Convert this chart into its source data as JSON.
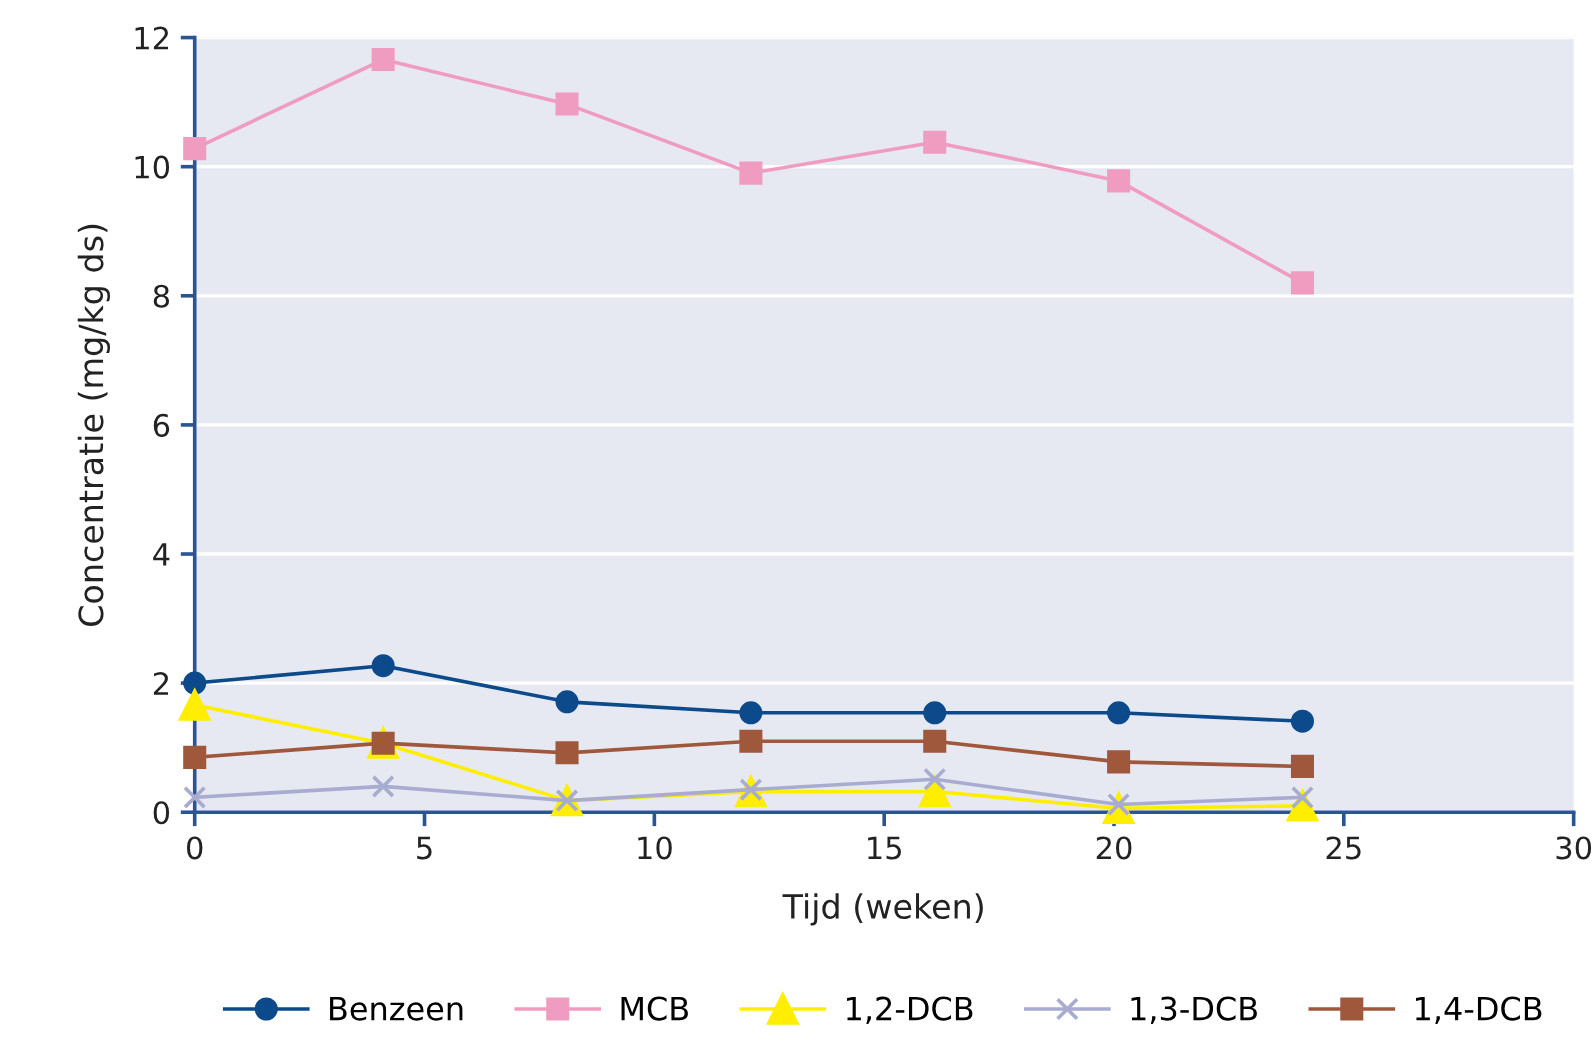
{
  "chart_data": {
    "type": "line",
    "xlabel": "Tijd (weken)",
    "ylabel": "Concentratie (mg/kg ds)",
    "x": [
      0,
      4.1,
      8.1,
      12.1,
      16.1,
      20.1,
      24.1
    ],
    "xlim": [
      0,
      30
    ],
    "xticks": [
      0,
      5,
      10,
      15,
      20,
      25,
      30
    ],
    "ylim": [
      0,
      12
    ],
    "yticks": [
      0,
      2,
      4,
      6,
      8,
      10,
      12
    ],
    "grid": "y",
    "legend": "bottom",
    "series": [
      {
        "name": "Benzeen",
        "color": "#0c4a8c",
        "marker": "circle",
        "values": [
          2.0,
          2.27,
          1.71,
          1.54,
          1.54,
          1.54,
          1.41
        ]
      },
      {
        "name": "MCB",
        "color": "#f09cc0",
        "marker": "square",
        "values": [
          10.28,
          11.66,
          10.97,
          9.9,
          10.38,
          9.78,
          8.2
        ]
      },
      {
        "name": "1,2-DCB",
        "color": "#ffee00",
        "marker": "triangle",
        "values": [
          1.66,
          1.07,
          0.18,
          0.32,
          0.32,
          0.06,
          0.1
        ]
      },
      {
        "name": "1,3-DCB",
        "color": "#a8acd0",
        "marker": "cross",
        "values": [
          0.23,
          0.4,
          0.18,
          0.35,
          0.51,
          0.12,
          0.23
        ]
      },
      {
        "name": "1,4-DCB",
        "color": "#a0583c",
        "marker": "square",
        "values": [
          0.85,
          1.07,
          0.92,
          1.1,
          1.1,
          0.78,
          0.71
        ]
      }
    ]
  }
}
